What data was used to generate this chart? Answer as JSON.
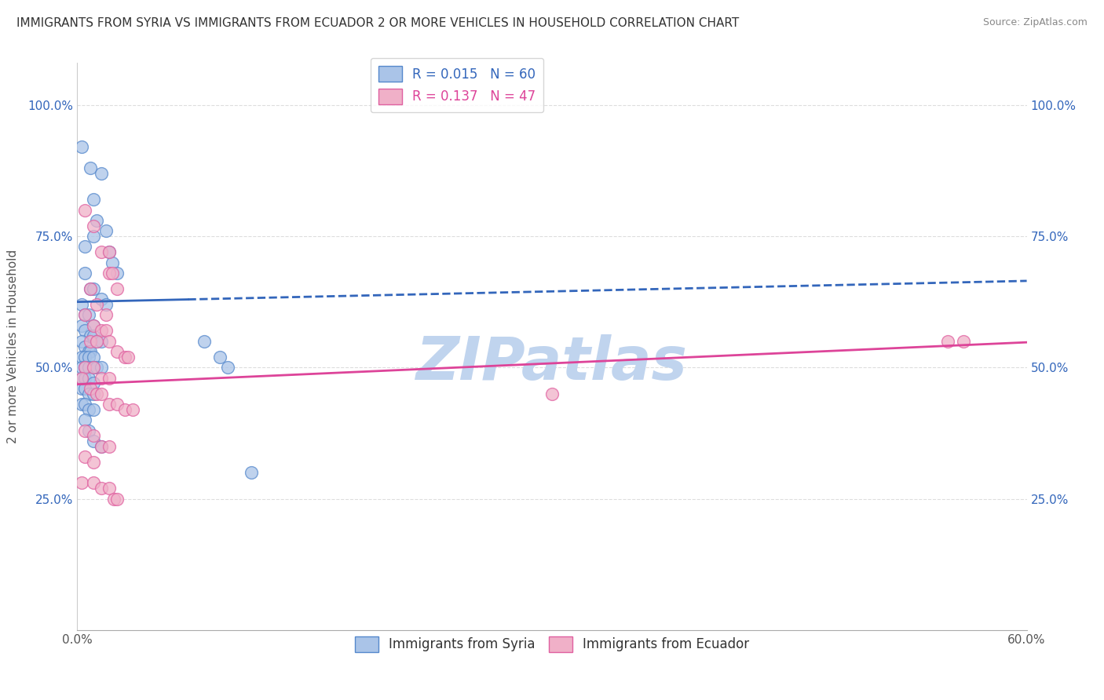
{
  "title": "IMMIGRANTS FROM SYRIA VS IMMIGRANTS FROM ECUADOR 2 OR MORE VEHICLES IN HOUSEHOLD CORRELATION CHART",
  "source": "Source: ZipAtlas.com",
  "ylabel": "2 or more Vehicles in Household",
  "xlim": [
    0.0,
    0.6
  ],
  "ylim": [
    0.0,
    1.05
  ],
  "xtick_values": [
    0.0,
    0.1,
    0.2,
    0.3,
    0.4,
    0.5,
    0.6
  ],
  "xtick_labels": [
    "0.0%",
    "",
    "",
    "",
    "",
    "",
    "60.0%"
  ],
  "ytick_values": [
    0.25,
    0.5,
    0.75,
    1.0
  ],
  "ytick_labels": [
    "25.0%",
    "50.0%",
    "75.0%",
    "100.0%"
  ],
  "blue_R": 0.015,
  "blue_N": 60,
  "pink_R": 0.137,
  "pink_N": 47,
  "blue_color": "#aac4e8",
  "pink_color": "#f0b0c8",
  "blue_edge_color": "#5588cc",
  "pink_edge_color": "#e060a0",
  "blue_line_color": "#3366bb",
  "pink_line_color": "#dd4499",
  "blue_scatter": [
    [
      0.003,
      0.92
    ],
    [
      0.008,
      0.88
    ],
    [
      0.01,
      0.82
    ],
    [
      0.015,
      0.87
    ],
    [
      0.012,
      0.78
    ],
    [
      0.018,
      0.76
    ],
    [
      0.005,
      0.73
    ],
    [
      0.01,
      0.75
    ],
    [
      0.02,
      0.72
    ],
    [
      0.022,
      0.7
    ],
    [
      0.025,
      0.68
    ],
    [
      0.005,
      0.68
    ],
    [
      0.008,
      0.65
    ],
    [
      0.01,
      0.65
    ],
    [
      0.015,
      0.63
    ],
    [
      0.018,
      0.62
    ],
    [
      0.003,
      0.62
    ],
    [
      0.005,
      0.6
    ],
    [
      0.007,
      0.6
    ],
    [
      0.01,
      0.58
    ],
    [
      0.003,
      0.58
    ],
    [
      0.005,
      0.57
    ],
    [
      0.008,
      0.56
    ],
    [
      0.01,
      0.56
    ],
    [
      0.012,
      0.55
    ],
    [
      0.015,
      0.55
    ],
    [
      0.003,
      0.55
    ],
    [
      0.005,
      0.54
    ],
    [
      0.007,
      0.53
    ],
    [
      0.008,
      0.53
    ],
    [
      0.003,
      0.52
    ],
    [
      0.005,
      0.52
    ],
    [
      0.007,
      0.52
    ],
    [
      0.01,
      0.52
    ],
    [
      0.003,
      0.5
    ],
    [
      0.005,
      0.5
    ],
    [
      0.007,
      0.5
    ],
    [
      0.01,
      0.5
    ],
    [
      0.012,
      0.5
    ],
    [
      0.015,
      0.5
    ],
    [
      0.003,
      0.48
    ],
    [
      0.005,
      0.48
    ],
    [
      0.007,
      0.48
    ],
    [
      0.01,
      0.47
    ],
    [
      0.003,
      0.46
    ],
    [
      0.005,
      0.46
    ],
    [
      0.007,
      0.45
    ],
    [
      0.01,
      0.45
    ],
    [
      0.003,
      0.43
    ],
    [
      0.005,
      0.43
    ],
    [
      0.007,
      0.42
    ],
    [
      0.01,
      0.42
    ],
    [
      0.005,
      0.4
    ],
    [
      0.007,
      0.38
    ],
    [
      0.01,
      0.36
    ],
    [
      0.015,
      0.35
    ],
    [
      0.08,
      0.55
    ],
    [
      0.09,
      0.52
    ],
    [
      0.095,
      0.5
    ],
    [
      0.11,
      0.3
    ]
  ],
  "pink_scatter": [
    [
      0.005,
      0.8
    ],
    [
      0.01,
      0.77
    ],
    [
      0.015,
      0.72
    ],
    [
      0.02,
      0.72
    ],
    [
      0.02,
      0.68
    ],
    [
      0.022,
      0.68
    ],
    [
      0.025,
      0.65
    ],
    [
      0.008,
      0.65
    ],
    [
      0.012,
      0.62
    ],
    [
      0.018,
      0.6
    ],
    [
      0.005,
      0.6
    ],
    [
      0.01,
      0.58
    ],
    [
      0.015,
      0.57
    ],
    [
      0.018,
      0.57
    ],
    [
      0.008,
      0.55
    ],
    [
      0.012,
      0.55
    ],
    [
      0.02,
      0.55
    ],
    [
      0.025,
      0.53
    ],
    [
      0.03,
      0.52
    ],
    [
      0.032,
      0.52
    ],
    [
      0.005,
      0.5
    ],
    [
      0.01,
      0.5
    ],
    [
      0.015,
      0.48
    ],
    [
      0.02,
      0.48
    ],
    [
      0.003,
      0.48
    ],
    [
      0.008,
      0.46
    ],
    [
      0.012,
      0.45
    ],
    [
      0.015,
      0.45
    ],
    [
      0.02,
      0.43
    ],
    [
      0.025,
      0.43
    ],
    [
      0.03,
      0.42
    ],
    [
      0.035,
      0.42
    ],
    [
      0.005,
      0.38
    ],
    [
      0.01,
      0.37
    ],
    [
      0.015,
      0.35
    ],
    [
      0.02,
      0.35
    ],
    [
      0.005,
      0.33
    ],
    [
      0.01,
      0.32
    ],
    [
      0.003,
      0.28
    ],
    [
      0.01,
      0.28
    ],
    [
      0.015,
      0.27
    ],
    [
      0.02,
      0.27
    ],
    [
      0.023,
      0.25
    ],
    [
      0.025,
      0.25
    ],
    [
      0.3,
      0.45
    ],
    [
      0.55,
      0.55
    ],
    [
      0.56,
      0.55
    ]
  ],
  "watermark": "ZIPatlas",
  "watermark_color": "#c0d4ee",
  "background_color": "#ffffff",
  "grid_color": "#dddddd",
  "title_color": "#333333",
  "source_color": "#888888",
  "tick_color": "#555555",
  "ylabel_color": "#555555"
}
